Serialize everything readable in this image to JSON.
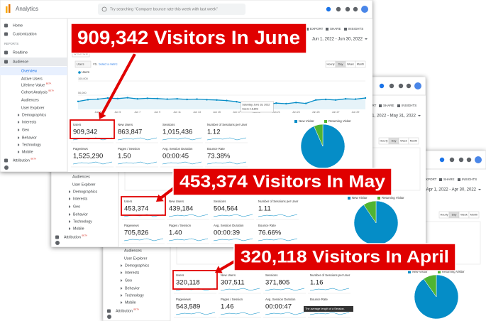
{
  "app": {
    "name": "Analytics",
    "search": "Try searching “Compare bounce rate this week with last week”",
    "export": "EXPORT",
    "share": "SHARE",
    "insights": "INSIGHTS",
    "tab": "Overview",
    "metric_select": "Users",
    "vs": "VS.",
    "select_metric": "Select a metric",
    "granularity": [
      "Hourly",
      "Day",
      "Week",
      "Month"
    ],
    "legend": [
      "New Visitor",
      "Returning Visitor"
    ],
    "beta": "BETA",
    "sidebar": [
      "Home",
      "Customization",
      "REPORTS",
      "Realtime",
      "Audience",
      "Overview",
      "Active Users",
      "Lifetime Value",
      "Cohort Analysis",
      "Audiences",
      "User Explorer",
      "Demographics",
      "Interests",
      "Geo",
      "Behavior",
      "Technology",
      "Mobile",
      "Attribution"
    ]
  },
  "screens": [
    {
      "date_range": "Jun 1, 2022 - Jun 30, 2022",
      "metrics": [
        {
          "label": "Users",
          "value": "909,342"
        },
        {
          "label": "New Users",
          "value": "863,847"
        },
        {
          "label": "Sessions",
          "value": "1,015,436"
        },
        {
          "label": "Number of Sessions per User",
          "value": "1.12"
        },
        {
          "label": "Pageviews",
          "value": "1,525,290"
        },
        {
          "label": "Pages / Session",
          "value": "1.50"
        },
        {
          "label": "Avg. Session Duration",
          "value": "00:00:45"
        },
        {
          "label": "Bounce Rate",
          "value": "73.38%"
        }
      ],
      "visitor_split": [
        93.4,
        6.6
      ],
      "chart": {
        "type": "line",
        "series_name": "Users",
        "color": "#058dc7",
        "categories": [
          null,
          null,
          "Jun 3",
          null,
          "Jun 5",
          null,
          "Jun 7",
          null,
          "Jun 9",
          null,
          "Jun 11",
          null,
          "Jun 13",
          null,
          "Jun 15",
          null,
          "Jun 17",
          null,
          "Jun 19",
          null,
          "Jun 21",
          null,
          "Jun 23",
          null,
          "Jun 25",
          null,
          "Jun 27",
          null,
          "Jun 29",
          null
        ],
        "values": [
          28000,
          34000,
          36000,
          40000,
          38000,
          41000,
          37000,
          39000,
          38000,
          36000,
          37000,
          35000,
          36000,
          34000,
          33000,
          31000,
          27000,
          18803,
          20000,
          17000,
          22000,
          20000,
          24000,
          21000,
          33000,
          35000,
          33000,
          37000,
          36000,
          40000
        ],
        "ylim": [
          0,
          115000
        ],
        "yticks": [
          {
            "value": 50000,
            "label": "50,000"
          },
          {
            "value": 100000,
            "label": "100,000"
          }
        ],
        "tooltip": {
          "date": "Saturday, June 18, 2022",
          "label": "Users: 18,803"
        }
      }
    },
    {
      "date_range": "May 1, 2022 - May 31, 2022",
      "metrics": [
        {
          "label": "Users",
          "value": "453,374"
        },
        {
          "label": "New Users",
          "value": "439,184"
        },
        {
          "label": "Sessions",
          "value": "504,564"
        },
        {
          "label": "Number of Sessions per User",
          "value": "1.11"
        },
        {
          "label": "Pageviews",
          "value": "705,826"
        },
        {
          "label": "Pages / Session",
          "value": "1.40"
        },
        {
          "label": "Avg. Session Duration",
          "value": "00:00:39"
        },
        {
          "label": "Bounce Rate",
          "value": "76.66%"
        }
      ],
      "visitor_split": [
        90.5,
        9.5
      ]
    },
    {
      "date_range": "Apr 1, 2022 - Apr 30, 2022",
      "metrics": [
        {
          "label": "Users",
          "value": "320,118"
        },
        {
          "label": "New Users",
          "value": "307,511"
        },
        {
          "label": "Sessions",
          "value": "371,805"
        },
        {
          "label": "Number of Sessions per User",
          "value": "1.16"
        },
        {
          "label": "Pageviews",
          "value": "543,589"
        },
        {
          "label": "Pages / Session",
          "value": "1.46"
        },
        {
          "label": "Avg. Session Duration",
          "value": "00:00:47"
        },
        {
          "label": "Bounce Rate"
        }
      ],
      "visitor_split": [
        90.2,
        9.8
      ],
      "tooltip": "The average length of a Session."
    }
  ],
  "callouts": [
    "909,342 Visitors In June",
    "453,374 Visitors In May",
    "320,118 Visitors In April"
  ]
}
